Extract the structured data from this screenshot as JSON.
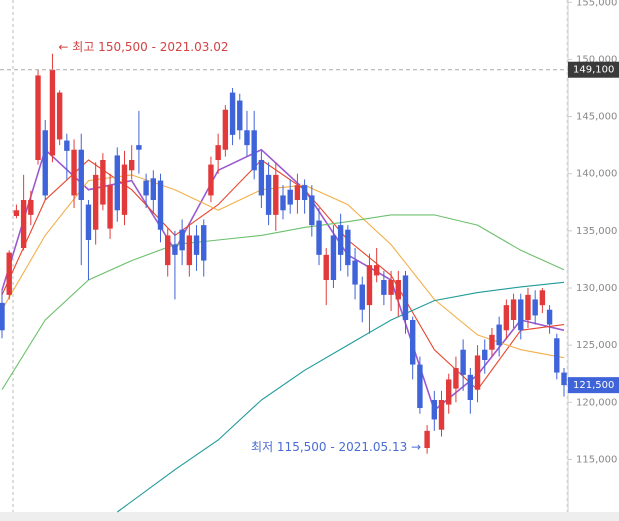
{
  "chart_data": {
    "type": "candlestick",
    "up_color": "#e23a3a",
    "down_color": "#3f63d8",
    "candles": {
      "open": [
        128700,
        129400,
        136300,
        133500,
        136400,
        141200,
        143800,
        141600,
        143000,
        142900,
        138100,
        142100,
        137300,
        135100,
        137300,
        135200,
        141600,
        136400,
        140300,
        142500,
        139400,
        139600,
        139400,
        132000,
        133800,
        135100,
        132000,
        134600,
        135500,
        138100,
        141200,
        142100,
        147100,
        146400,
        143800,
        143800,
        141200,
        139900,
        136400,
        138100,
        138600,
        137700,
        139000,
        138100,
        135900,
        130700,
        134600,
        135500,
        135100,
        132400,
        130300,
        128500,
        131100,
        130700,
        129400,
        129000,
        131100,
        127200,
        123300,
        116000,
        120200,
        117600,
        119800,
        121200,
        124600,
        122400,
        121100,
        124600,
        124600,
        126800,
        126300,
        127200,
        129000,
        127200,
        129000,
        128500,
        128100,
        125600,
        122600
      ],
      "high": [
        129800,
        133300,
        137300,
        139900,
        138500,
        149100,
        144700,
        150500,
        147300,
        143500,
        143000,
        143500,
        137700,
        141000,
        141800,
        140000,
        142300,
        142000,
        142500,
        145500,
        140000,
        140300,
        140000,
        135200,
        135000,
        136000,
        135500,
        135500,
        136000,
        141500,
        143500,
        146000,
        147500,
        147000,
        145500,
        145500,
        142000,
        141000,
        141000,
        139000,
        139500,
        140000,
        139500,
        139000,
        137000,
        133500,
        135500,
        136500,
        135500,
        133500,
        131000,
        133000,
        133500,
        131500,
        131500,
        131500,
        131500,
        127500,
        124000,
        118000,
        121000,
        121000,
        122500,
        124000,
        125500,
        123000,
        125000,
        125500,
        126500,
        127500,
        129000,
        129500,
        129500,
        130000,
        129800,
        130000,
        128500,
        126000,
        123000
      ],
      "low": [
        125600,
        129000,
        136100,
        133300,
        135500,
        140800,
        137700,
        141000,
        142500,
        139500,
        137000,
        132000,
        130700,
        133800,
        136800,
        134300,
        135800,
        135500,
        139500,
        140000,
        137000,
        136500,
        134000,
        131000,
        129000,
        132000,
        131000,
        131500,
        131000,
        137500,
        140000,
        141500,
        142500,
        143000,
        141500,
        139500,
        137000,
        135500,
        135000,
        136000,
        136500,
        136500,
        136500,
        134500,
        132000,
        128500,
        130000,
        131500,
        131000,
        129000,
        127000,
        126000,
        130500,
        128500,
        128000,
        127500,
        126000,
        122000,
        119000,
        115500,
        117500,
        117000,
        119000,
        120000,
        121000,
        119000,
        120000,
        122500,
        124000,
        124000,
        125500,
        126500,
        125500,
        126500,
        126800,
        127800,
        126000,
        122000,
        120500
      ],
      "close": [
        126300,
        133100,
        136800,
        137700,
        137700,
        148600,
        138100,
        149100,
        147100,
        142000,
        142100,
        137700,
        134200,
        139900,
        141200,
        139000,
        136800,
        140800,
        141200,
        142100,
        138100,
        137700,
        135100,
        134600,
        132900,
        133300,
        134600,
        132900,
        132400,
        140800,
        142500,
        145600,
        143400,
        143800,
        142500,
        140300,
        138100,
        136400,
        139900,
        136800,
        137300,
        139000,
        137700,
        135500,
        132900,
        132900,
        130700,
        132900,
        132000,
        130300,
        128100,
        132000,
        132000,
        129400,
        130700,
        130700,
        127200,
        123300,
        119500,
        117500,
        118500,
        120200,
        122000,
        123000,
        122400,
        120200,
        124100,
        123700,
        125900,
        125000,
        128500,
        129000,
        126300,
        129400,
        127600,
        129800,
        126800,
        122600,
        121500
      ]
    },
    "series": [
      {
        "color": "#9b59d0",
        "x": [
          0,
          6,
          12,
          18,
          24,
          30,
          36,
          42,
          48,
          54,
          60,
          66,
          72,
          78
        ],
        "values": [
          129800,
          142100,
          138600,
          139400,
          133300,
          140300,
          142100,
          138600,
          132900,
          130700,
          119300,
          122400,
          127200,
          126300
        ]
      },
      {
        "color": "#e8452c",
        "x": [
          0,
          6,
          12,
          18,
          24,
          30,
          36,
          42,
          48,
          54,
          60,
          66,
          72,
          78
        ],
        "values": [
          129400,
          137700,
          141200,
          138600,
          134600,
          137300,
          141200,
          138600,
          134200,
          131100,
          124600,
          121100,
          126300,
          126800
        ]
      },
      {
        "color": "#f2b04a",
        "x": [
          0,
          6,
          12,
          18,
          24,
          30,
          36,
          42,
          48,
          54,
          60,
          66,
          72,
          78
        ],
        "values": [
          128100,
          134600,
          139400,
          139900,
          138600,
          136800,
          138600,
          139000,
          137300,
          133800,
          129000,
          125900,
          124600,
          123900
        ]
      },
      {
        "color": "#6cc06c",
        "x": [
          0,
          6,
          12,
          18,
          24,
          30,
          36,
          42,
          48,
          54,
          60,
          66,
          72,
          78
        ],
        "values": [
          121100,
          127200,
          130700,
          132400,
          133800,
          134200,
          134600,
          135300,
          135800,
          136400,
          136400,
          135500,
          133300,
          131600
        ]
      },
      {
        "color": "#1e9a9a",
        "x": [
          16,
          24,
          30,
          36,
          42,
          48,
          54,
          60,
          66,
          72,
          78
        ],
        "values": [
          110400,
          114100,
          116700,
          120200,
          122800,
          125000,
          127200,
          128900,
          129600,
          130100,
          130500
        ]
      }
    ],
    "ylim": [
      110400,
      155200
    ],
    "yticks": [
      {
        "value": 115000,
        "label": "115,000"
      },
      {
        "value": 120000,
        "label": "120,000"
      },
      {
        "value": 125000,
        "label": "125,000"
      },
      {
        "value": 130000,
        "label": "130,000"
      },
      {
        "value": 135000,
        "label": "135,000"
      },
      {
        "value": 140000,
        "label": "140,000"
      },
      {
        "value": 145000,
        "label": "145,000"
      },
      {
        "value": 150000,
        "label": "150,000"
      },
      {
        "value": 155000,
        "label": "155,000"
      }
    ],
    "price_markers": [
      {
        "value": 149100,
        "label": "149,100",
        "color": "#3a3a3a",
        "dashed": true
      },
      {
        "value": 121500,
        "label": "121,500",
        "color": "#3f63d8",
        "dashed": false
      }
    ],
    "high_label": "← 최고 150,500 - 2021.03.02",
    "low_label": "최저 115,500 - 2021.05.13 →"
  }
}
